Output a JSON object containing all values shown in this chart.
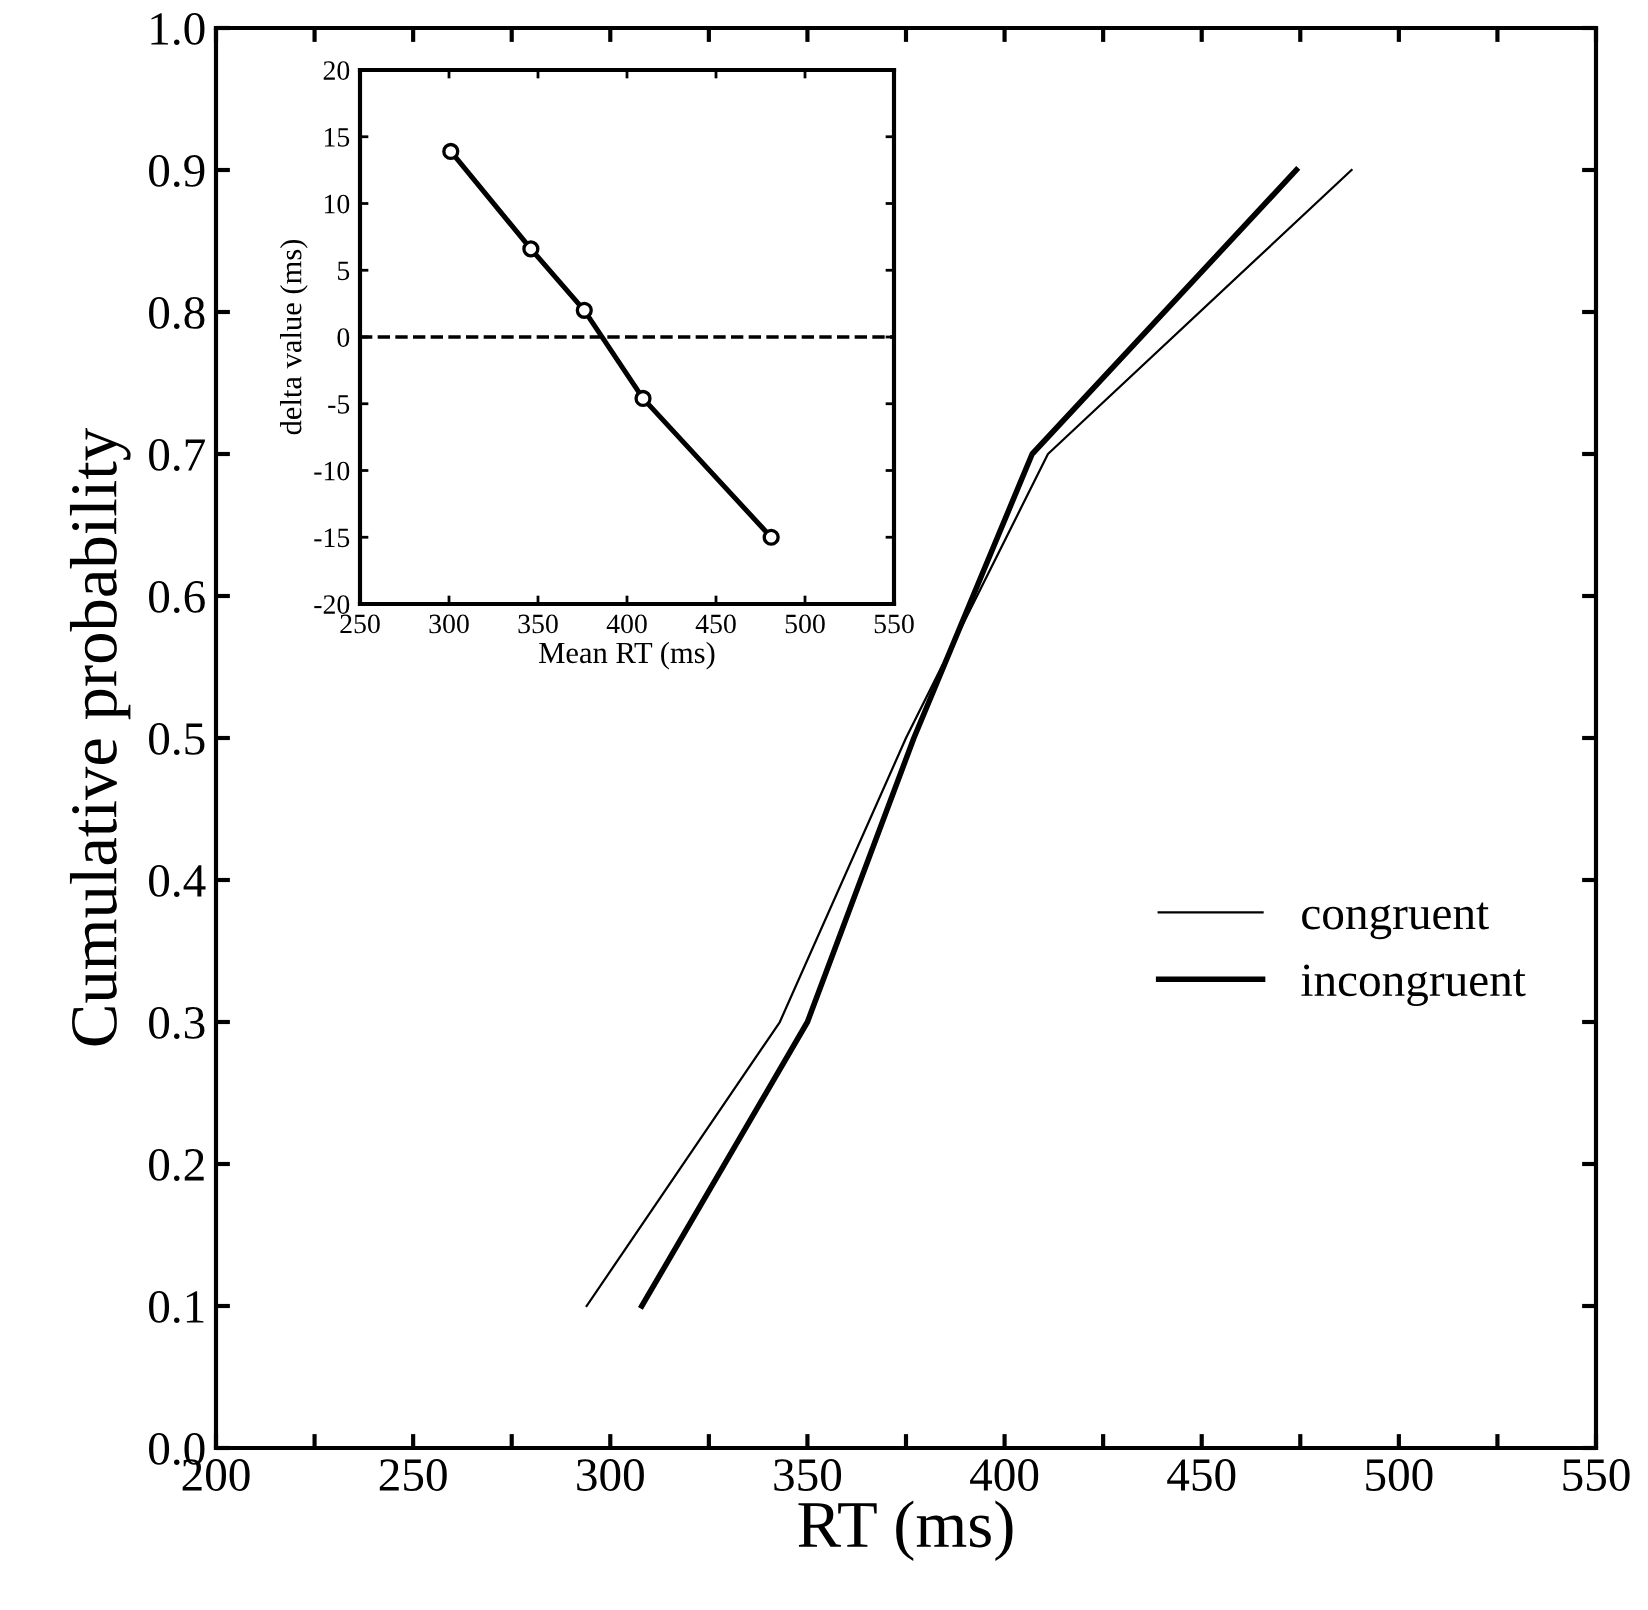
{
  "chart_data": [
    {
      "type": "line",
      "xlabel": "RT (ms)",
      "ylabel": "Cumulative probability",
      "xlim": [
        200,
        550
      ],
      "ylim": [
        0,
        1
      ],
      "xticks": [
        200,
        {
          "value": 225,
          "label": null
        },
        250,
        {
          "value": 275,
          "label": null
        },
        300,
        {
          "value": 325,
          "label": null
        },
        350,
        {
          "value": 375,
          "label": null
        },
        400,
        {
          "value": 425,
          "label": null
        },
        450,
        {
          "value": 475,
          "label": null
        },
        500,
        {
          "value": 525,
          "label": null
        },
        550
      ],
      "yticks": [
        {
          "value": 0,
          "label": "0.0"
        },
        0.1,
        0.2,
        0.3,
        0.4,
        0.5,
        0.6,
        0.7,
        0.8,
        0.9,
        {
          "value": 1,
          "label": "1.0"
        }
      ],
      "grid": false,
      "legend": "center right",
      "marker": "none",
      "line_style": "solid",
      "series": [
        {
          "name": "congruent",
          "color": "#000000",
          "x": [
            294,
            343,
            375,
            411,
            488
          ],
          "values": [
            0.1,
            0.3,
            0.5,
            0.7,
            0.9
          ]
        },
        {
          "name": "incongruent",
          "color": "#000000",
          "x": [
            308,
            350,
            377,
            407,
            474
          ],
          "values": [
            0.1,
            0.3,
            0.5,
            0.7,
            0.9
          ]
        }
      ]
    },
    {
      "type": "line",
      "xlabel": "Mean RT (ms)",
      "ylabel": "delta value (ms)",
      "xlim": [
        250,
        550
      ],
      "ylim": [
        -20,
        20
      ],
      "xticks": [
        250,
        300,
        350,
        400,
        450,
        500,
        550
      ],
      "yticks": [
        -20,
        -15,
        -10,
        -5,
        0,
        5,
        10,
        15,
        20
      ],
      "grid": false,
      "legend": false,
      "marker": "circle",
      "line_style": "solid",
      "ref_lines": [
        {
          "axis": "y",
          "value": 0,
          "label": null,
          "color": "#000000",
          "line_style": "dashed"
        }
      ],
      "series": [
        {
          "color": "#000000",
          "x": [
            301,
            346,
            376,
            409,
            481
          ],
          "values": [
            13.9,
            6.6,
            2.0,
            -4.6,
            -15.0
          ]
        }
      ]
    }
  ]
}
